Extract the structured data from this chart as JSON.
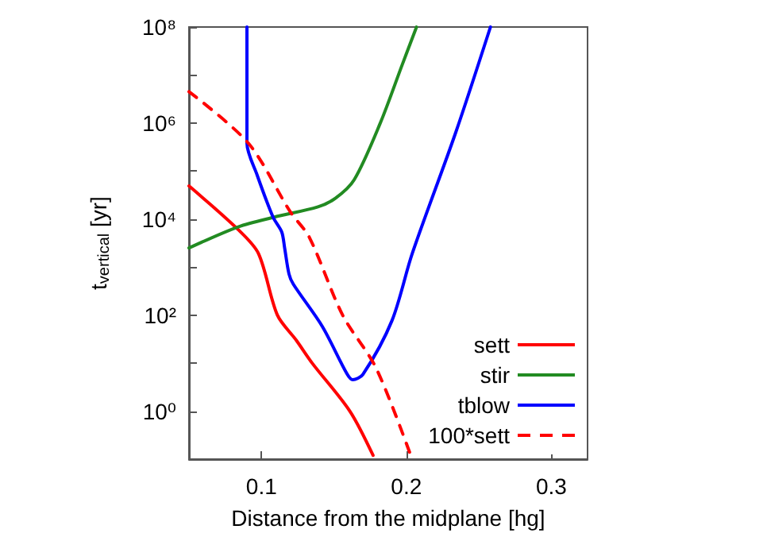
{
  "chart_data": {
    "type": "line",
    "xlabel": "Distance from the midplane [hg]",
    "ylabel": "t$_{vertical}$ [yr]",
    "log": "y",
    "xlim": [
      0.05,
      0.325
    ],
    "xticks": [
      0.1,
      0.2,
      0.3
    ],
    "ylim": [
      0.1,
      100000000
    ],
    "yticks": [
      {
        "value": 1,
        "label": "10⁰"
      },
      {
        "value": 10,
        "label": null
      },
      {
        "value": 100,
        "label": "10²"
      },
      {
        "value": 1000,
        "label": null
      },
      {
        "value": 10000,
        "label": "10⁴"
      },
      {
        "value": 100000,
        "label": null
      },
      {
        "value": 1000000,
        "label": "10⁶"
      },
      {
        "value": 10000000,
        "label": null
      },
      {
        "value": 100000000,
        "label": "10⁸"
      }
    ],
    "grid": false,
    "legend": "bottom right",
    "marker": "none",
    "series": [
      {
        "name": "sett",
        "color": "#ff0000",
        "line_style": "solid",
        "x": [
          0.05,
          0.084,
          0.098,
          0.111,
          0.124,
          0.135,
          0.161,
          0.177
        ],
        "values": [
          49000,
          6000,
          1900,
          100,
          30,
          10,
          1.0,
          0.12
        ]
      },
      {
        "name": "stir",
        "color": "#228b22",
        "line_style": "solid",
        "x": [
          0.05,
          0.084,
          0.109,
          0.139,
          0.151,
          0.164,
          0.182,
          0.197,
          0.207
        ],
        "values": [
          2500,
          6900,
          11000,
          18000,
          27000,
          66000,
          1000000,
          16000000,
          100000000
        ]
      },
      {
        "name": "tblow",
        "color": "#0000ff",
        "line_style": "solid",
        "x": [
          0.09,
          0.09,
          0.097,
          0.108,
          0.114,
          0.116,
          0.119,
          0.122,
          0.142,
          0.159,
          0.163,
          0.17,
          0.19,
          0.204,
          0.234,
          0.258
        ],
        "values": [
          100000000,
          380000,
          83000,
          11000,
          5400,
          2500,
          720,
          440,
          58,
          6,
          4.5,
          5.8,
          76,
          1900,
          630000,
          100000000
        ]
      },
      {
        "name": "100*sett",
        "color": "#ff0000",
        "line_style": "dashed",
        "x": [
          0.05,
          0.091,
          0.12,
          0.133,
          0.156,
          0.179,
          0.203
        ],
        "values": [
          4500000,
          380000,
          14000,
          4200,
          100,
          8,
          0.12
        ]
      }
    ]
  }
}
